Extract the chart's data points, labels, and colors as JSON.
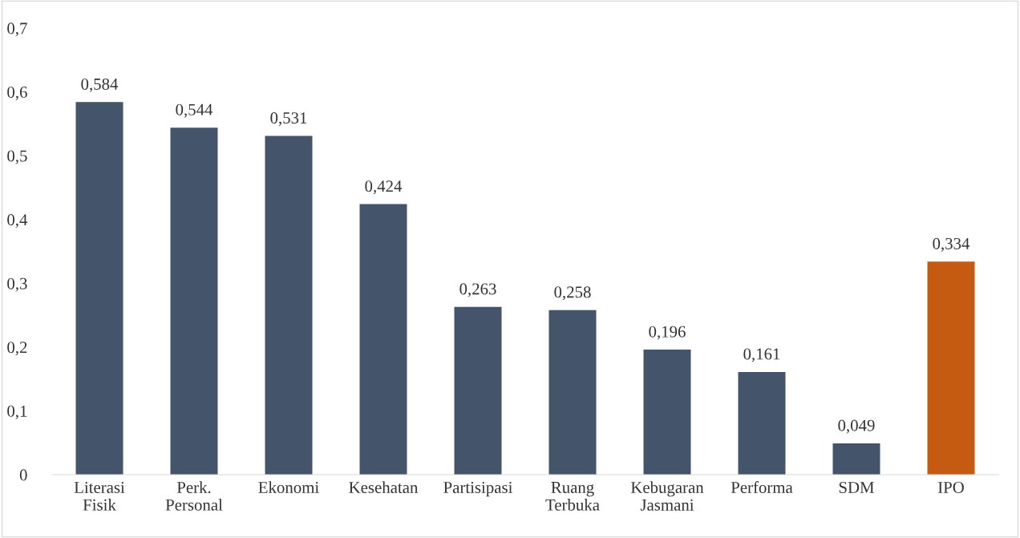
{
  "chart_data": {
    "type": "bar",
    "categories": [
      "Literasi Fisik",
      "Perk. Personal",
      "Ekonomi",
      "Kesehatan",
      "Partisipasi",
      "Ruang Terbuka",
      "Kebugaran Jasmani",
      "Performa",
      "SDM",
      "IPO"
    ],
    "values": [
      0.584,
      0.544,
      0.531,
      0.424,
      0.263,
      0.258,
      0.196,
      0.161,
      0.049,
      0.334
    ],
    "colors": [
      "#44546a",
      "#44546a",
      "#44546a",
      "#44546a",
      "#44546a",
      "#44546a",
      "#44546a",
      "#44546a",
      "#44546a",
      "#c55a11"
    ],
    "value_labels": [
      "0,584",
      "0,544",
      "0,531",
      "0,424",
      "0,263",
      "0,258",
      "0,196",
      "0,161",
      "0,049",
      "0,334"
    ],
    "ylim": [
      0,
      0.7
    ],
    "yticks": [
      {
        "value": 0,
        "label": "0"
      },
      {
        "value": 0.1,
        "label": "0,1"
      },
      {
        "value": 0.2,
        "label": "0,2"
      },
      {
        "value": 0.3,
        "label": "0,3"
      },
      {
        "value": 0.4,
        "label": "0,4"
      },
      {
        "value": 0.5,
        "label": "0,5"
      },
      {
        "value": 0.6,
        "label": "0,6"
      },
      {
        "value": 0.7,
        "label": "0,7"
      }
    ],
    "grid": false,
    "legend": false
  }
}
